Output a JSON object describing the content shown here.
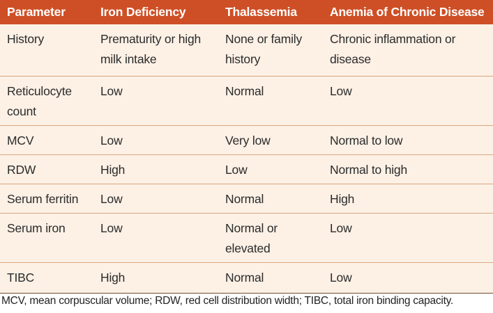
{
  "table": {
    "headers": [
      "Parameter",
      "Iron Deficiency",
      "Thalassemia",
      "Anemia of Chronic Disease"
    ],
    "rows": [
      [
        "History",
        "Prematurity or high milk intake",
        "None or family history",
        "Chronic inflammation or disease"
      ],
      [
        "Reticulocyte count",
        "Low",
        "Normal",
        "Low"
      ],
      [
        "MCV",
        "Low",
        "Very low",
        "Normal to low"
      ],
      [
        "RDW",
        "High",
        "Low",
        "Normal to high"
      ],
      [
        "Serum ferritin",
        "Low",
        "Normal",
        "High"
      ],
      [
        "Serum iron",
        "Low",
        "Normal or elevated",
        "Low"
      ],
      [
        "TIBC",
        "High",
        "Normal",
        "Low"
      ]
    ]
  },
  "footnote": "MCV, mean corpuscular volume; RDW, red cell distribution width; TIBC, total iron binding capacity.",
  "colors": {
    "header_bg": "#ce4f25",
    "header_text": "#ffffff",
    "body_bg": "#fdf1e6",
    "row_divider": "#d8a47d"
  }
}
